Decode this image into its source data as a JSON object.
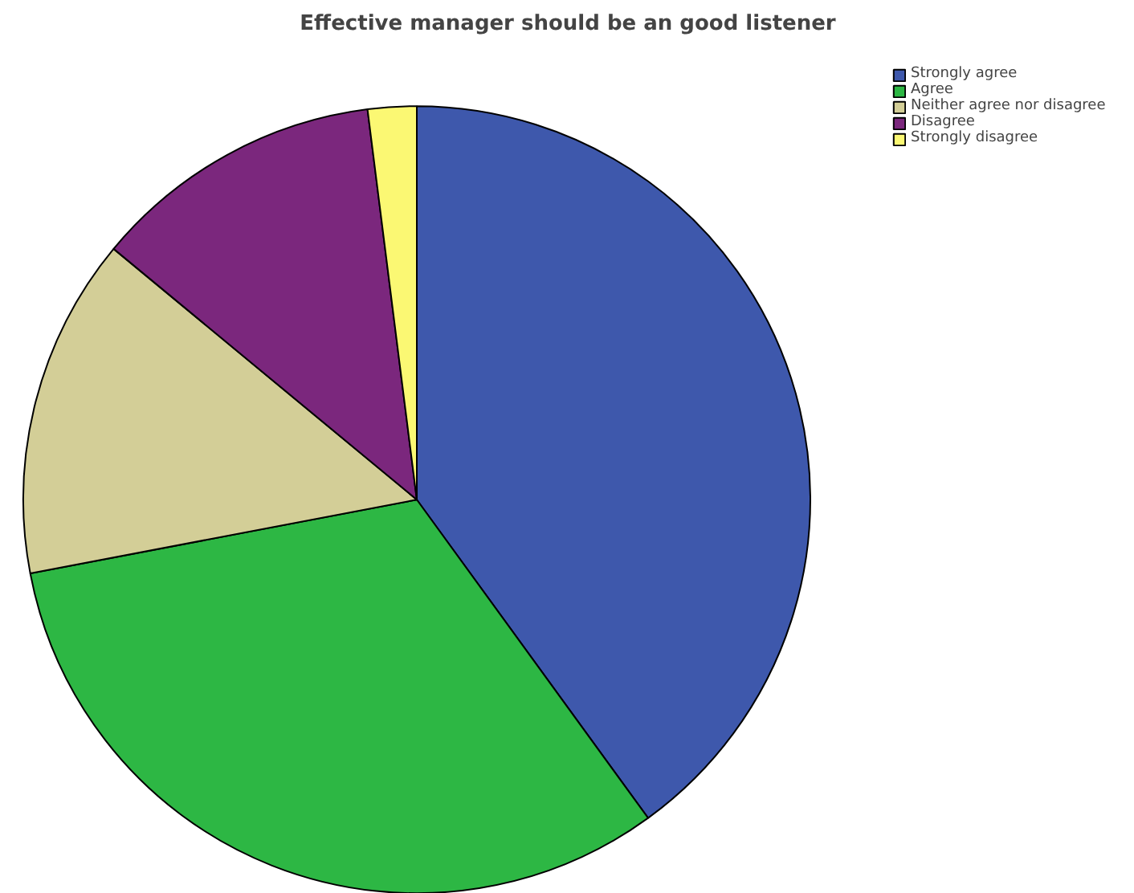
{
  "chart_data": {
    "type": "pie",
    "title": "Effective manager should be an good listener",
    "categories": [
      "Strongly agree",
      "Agree",
      "Neither agree nor disagree",
      "Disagree",
      "Strongly disagree"
    ],
    "values": [
      40,
      32,
      14,
      12,
      2
    ],
    "colors": [
      "#3e58ac",
      "#2db744",
      "#d3ce97",
      "#7b277d",
      "#fbf873"
    ],
    "legend": "top right"
  }
}
